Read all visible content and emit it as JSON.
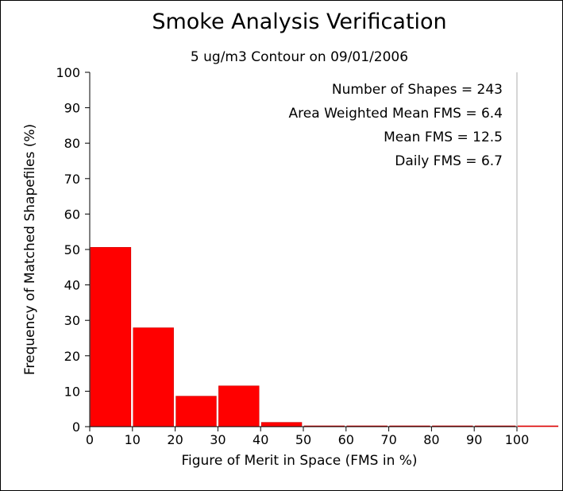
{
  "chart_data": {
    "type": "bar",
    "title": "Smoke Analysis Verification",
    "subtitle": "5 ug/m3 Contour on 09/01/2006",
    "xlabel": "Figure of Merit in Space (FMS in %)",
    "ylabel": "Frequency of Matched Shapefiles (%)",
    "xlim": [
      0,
      110
    ],
    "ylim": [
      0,
      100
    ],
    "x_ticks": [
      "0",
      "10",
      "20",
      "30",
      "40",
      "50",
      "60",
      "70",
      "80",
      "90",
      "100"
    ],
    "y_ticks": [
      "0",
      "10",
      "20",
      "30",
      "40",
      "50",
      "60",
      "70",
      "80",
      "90",
      "100"
    ],
    "bins": [
      {
        "from": 0,
        "to": 10,
        "value": 50.6
      },
      {
        "from": 10,
        "to": 20,
        "value": 27.9
      },
      {
        "from": 20,
        "to": 30,
        "value": 8.6
      },
      {
        "from": 30,
        "to": 40,
        "value": 11.5
      },
      {
        "from": 40,
        "to": 50,
        "value": 1.2
      },
      {
        "from": 50,
        "to": 60,
        "value": 0
      },
      {
        "from": 60,
        "to": 70,
        "value": 0
      },
      {
        "from": 70,
        "to": 80,
        "value": 0
      },
      {
        "from": 80,
        "to": 90,
        "value": 0
      },
      {
        "from": 90,
        "to": 100,
        "value": 0
      },
      {
        "from": 100,
        "to": 110,
        "value": 0
      }
    ],
    "annotations": [
      "Number of Shapes = 243",
      "Area Weighted Mean FMS = 6.4",
      "Mean FMS = 12.5",
      "Daily FMS = 6.7"
    ],
    "grid": false,
    "bar_color": "#ff0000",
    "bar_edge_color": "#cc0000"
  }
}
